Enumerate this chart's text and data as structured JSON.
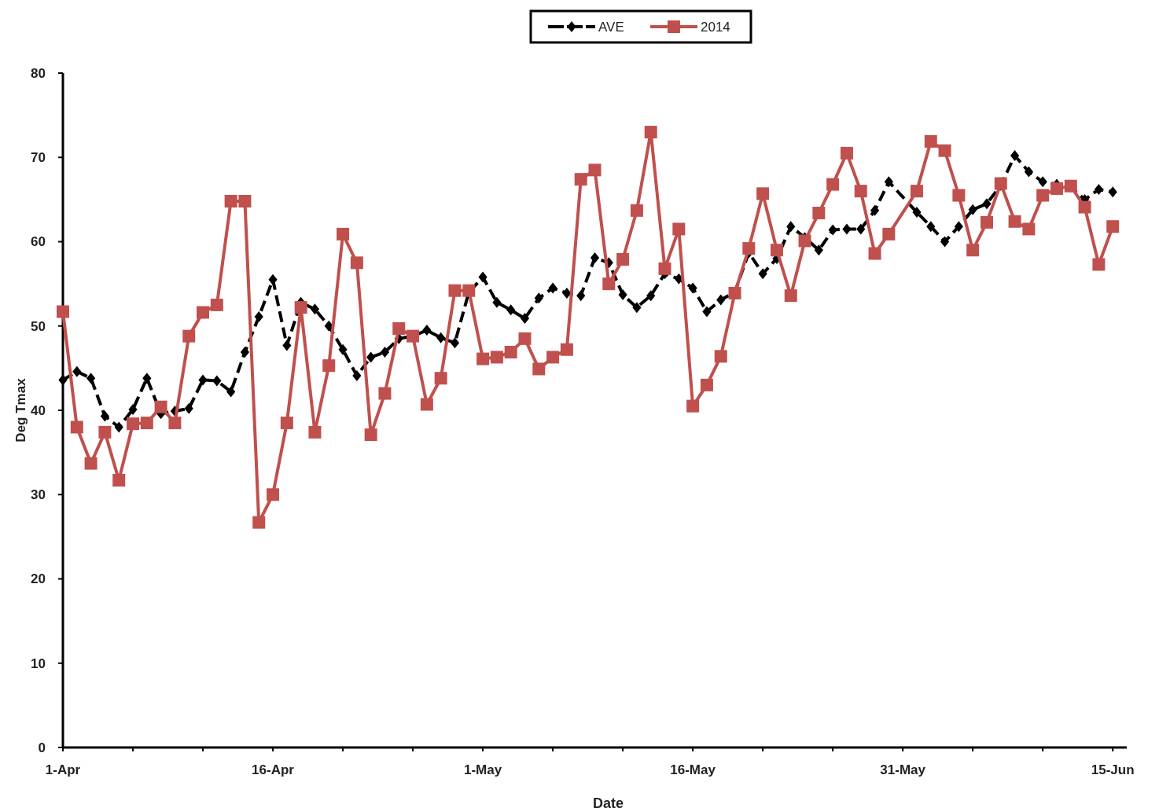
{
  "chart_data": {
    "type": "line",
    "xlabel": "Date",
    "ylabel": "Deg Tmax",
    "x": [
      "--04-01",
      "--04-02",
      "--04-03",
      "--04-04",
      "--04-05",
      "--04-06",
      "--04-07",
      "--04-08",
      "--04-09",
      "--04-10",
      "--04-11",
      "--04-12",
      "--04-13",
      "--04-14",
      "--04-15",
      "--04-16",
      "--04-17",
      "--04-18",
      "--04-19",
      "--04-20",
      "--04-21",
      "--04-22",
      "--04-23",
      "--04-24",
      "--04-25",
      "--04-26",
      "--04-27",
      "--04-28",
      "--04-29",
      "--04-30",
      "--05-01",
      "--05-02",
      "--05-03",
      "--05-04",
      "--05-05",
      "--05-06",
      "--05-07",
      "--05-08",
      "--05-09",
      "--05-10",
      "--05-11",
      "--05-12",
      "--05-13",
      "--05-14",
      "--05-15",
      "--05-16",
      "--05-17",
      "--05-18",
      "--05-19",
      "--05-20",
      "--05-21",
      "--05-22",
      "--05-23",
      "--05-24",
      "--05-25",
      "--05-26",
      "--05-27",
      "--05-28",
      "--05-29",
      "--05-30",
      "--06-01",
      "--06-02",
      "--06-03",
      "--06-04",
      "--06-05",
      "--06-06",
      "--06-07",
      "--06-08",
      "--06-09",
      "--06-10",
      "--06-11",
      "--06-12",
      "--06-13",
      "--06-14",
      "--06-15"
    ],
    "series": [
      {
        "name": "AVE",
        "color": "#000000",
        "marker": "diamond",
        "line_style": "dashed",
        "values": [
          43.6,
          44.6,
          43.8,
          39.3,
          38.0,
          40.1,
          43.8,
          39.6,
          39.9,
          40.2,
          43.6,
          43.5,
          42.2,
          46.9,
          51.1,
          55.5,
          47.7,
          52.8,
          52.0,
          50.0,
          47.2,
          44.1,
          46.3,
          46.9,
          48.5,
          48.8,
          49.5,
          48.6,
          48.0,
          54.0,
          55.8,
          52.8,
          51.9,
          50.9,
          53.3,
          54.5,
          53.9,
          53.6,
          58.1,
          57.5,
          53.7,
          52.2,
          53.6,
          56.2,
          55.6,
          54.5,
          51.7,
          53.1,
          54.0,
          58.7,
          56.2,
          58.0,
          61.8,
          60.5,
          59.0,
          61.4,
          61.5,
          61.5,
          63.7,
          67.1,
          63.5,
          61.8,
          60.0,
          61.8,
          63.8,
          64.5,
          66.7,
          70.2,
          68.3,
          67.1,
          66.8,
          66.5,
          65.0,
          66.2,
          65.9
        ]
      },
      {
        "name": "2014",
        "color": "#c0504d",
        "marker": "square",
        "line_style": "solid",
        "values": [
          51.7,
          38.0,
          33.7,
          37.4,
          31.7,
          38.4,
          38.5,
          40.4,
          38.5,
          48.8,
          51.6,
          52.5,
          64.8,
          64.8,
          26.7,
          30.0,
          38.5,
          52.2,
          37.4,
          45.3,
          60.9,
          57.5,
          37.1,
          42.0,
          49.7,
          48.8,
          40.7,
          43.8,
          54.2,
          54.2,
          46.1,
          46.3,
          46.9,
          48.5,
          44.9,
          46.3,
          47.2,
          67.4,
          68.5,
          55.0,
          57.9,
          63.7,
          73.0,
          56.8,
          61.5,
          40.5,
          43.0,
          46.4,
          53.9,
          59.2,
          65.7,
          59.0,
          53.6,
          60.1,
          63.4,
          66.8,
          70.5,
          66.0,
          58.6,
          60.9,
          66.0,
          71.9,
          70.8,
          65.5,
          59.0,
          62.3,
          66.9,
          62.4,
          61.5,
          65.5,
          66.3,
          66.6,
          64.1,
          57.3,
          61.8
        ]
      }
    ],
    "xlim": [
      "--04-01",
      "--06-16"
    ],
    "xticks": [
      {
        "value": "--04-01",
        "label": "1-Apr"
      },
      {
        "value": "--04-06",
        "label": null
      },
      {
        "value": "--04-11",
        "label": null
      },
      {
        "value": "--04-16",
        "label": "16-Apr"
      },
      {
        "value": "--04-21",
        "label": null
      },
      {
        "value": "--04-26",
        "label": null
      },
      {
        "value": "--05-01",
        "label": "1-May"
      },
      {
        "value": "--05-06",
        "label": null
      },
      {
        "value": "--05-11",
        "label": null
      },
      {
        "value": "--05-16",
        "label": "16-May"
      },
      {
        "value": "--05-21",
        "label": null
      },
      {
        "value": "--05-26",
        "label": null
      },
      {
        "value": "--05-31",
        "label": "31-May"
      },
      {
        "value": "--06-05",
        "label": null
      },
      {
        "value": "--06-10",
        "label": null
      },
      {
        "value": "--06-15",
        "label": "15-Jun"
      }
    ],
    "ylim": [
      0,
      80
    ],
    "yticks": [
      0,
      10,
      20,
      30,
      40,
      50,
      60,
      70,
      80
    ],
    "grid": false,
    "legend": "top"
  }
}
